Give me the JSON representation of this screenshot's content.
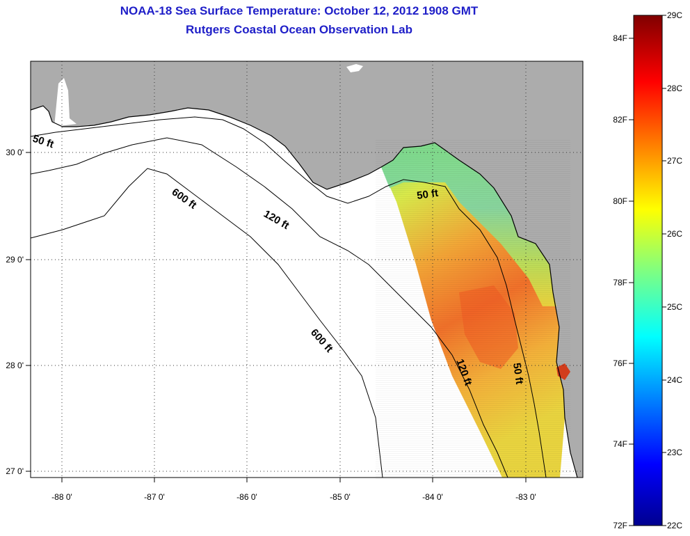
{
  "header": {
    "title": "NOAA-18 Sea Surface Temperature:  October 12, 2012 1908 GMT",
    "subtitle": "Rutgers Coastal Ocean Observation Lab"
  },
  "map": {
    "x_ticks": [
      "-88 0'",
      "-87 0'",
      "-86 0'",
      "-85 0'",
      "-84 0'",
      "-83 0'"
    ],
    "y_ticks": [
      "30 0'",
      "29 0'",
      "28 0'",
      "27 0'"
    ],
    "contour_labels": [
      "50 ft",
      "600 ft",
      "120 ft",
      "50 ft",
      "600 ft",
      "120 ft",
      "50 ft"
    ],
    "colors": {
      "land": "#acacac",
      "water": "#ffffff",
      "title": "#1e1ec8"
    }
  },
  "colorbar": {
    "f_labels": [
      "84F",
      "82F",
      "80F",
      "78F",
      "76F",
      "74F",
      "72F"
    ],
    "c_labels": [
      "29C",
      "28C",
      "27C",
      "26C",
      "25C",
      "24C",
      "23C",
      "22C"
    ],
    "f_range": [
      72,
      84.2
    ],
    "c_range": [
      22,
      29
    ]
  }
}
